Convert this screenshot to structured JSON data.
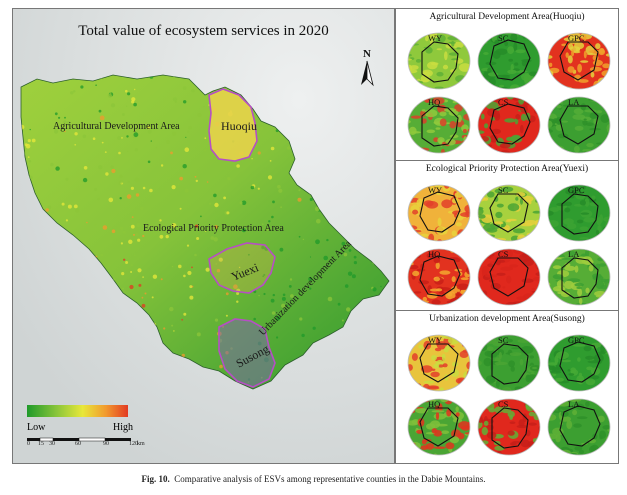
{
  "map": {
    "title": "Total value of ecosystem services in 2020",
    "north_label": "N",
    "regions": {
      "agricultural": "Agricultural Development Area",
      "ecological": "Ecological Priority Protection Area",
      "urbanization": "Urbanization development Area"
    },
    "counties": {
      "huoqiu": "Huoqiu",
      "yuexi": "Yuexi",
      "susong": "Susong"
    },
    "legend": {
      "low": "Low",
      "high": "High",
      "colors": [
        "#1f9a2a",
        "#8cc63a",
        "#e8e83a",
        "#f29a2e",
        "#e23a22"
      ]
    },
    "scale": {
      "ticks": [
        "0",
        "15",
        "30",
        "60",
        "90",
        "120"
      ],
      "unit": "km"
    }
  },
  "panels": [
    {
      "title": "Agricultural Development Area(Huoqiu)",
      "maps": [
        {
          "label": "WY",
          "colors": [
            "#8fc93c",
            "#c9dd3f",
            "#5fb036"
          ]
        },
        {
          "label": "SC",
          "colors": [
            "#2f9c2f",
            "#45aa35",
            "#268c28"
          ]
        },
        {
          "label": "GPC",
          "colors": [
            "#e2321f",
            "#f0a12c",
            "#e4d23d"
          ]
        },
        {
          "label": "HQ",
          "colors": [
            "#56ad36",
            "#8fc93c",
            "#d9402a"
          ]
        },
        {
          "label": "CS",
          "colors": [
            "#e0281d",
            "#c71f19",
            "#4aa534"
          ]
        },
        {
          "label": "LA",
          "colors": [
            "#3c9f31",
            "#54ad37",
            "#2e9129"
          ]
        }
      ]
    },
    {
      "title": "Ecological Priority Protection Area(Yuexi)",
      "maps": [
        {
          "label": "WY",
          "colors": [
            "#f0b23a",
            "#e8d23c",
            "#e3402a"
          ]
        },
        {
          "label": "SC",
          "colors": [
            "#a8d13e",
            "#4aa534",
            "#e7d03c"
          ]
        },
        {
          "label": "GPC",
          "colors": [
            "#2f9c2f",
            "#3ca332",
            "#268c28"
          ]
        },
        {
          "label": "HQ",
          "colors": [
            "#e2321f",
            "#f3a82f",
            "#c91f18"
          ]
        },
        {
          "label": "CS",
          "colors": [
            "#e0281d",
            "#d8241b",
            "#c71f19"
          ]
        },
        {
          "label": "LA",
          "colors": [
            "#56ad36",
            "#9fcd3d",
            "#3c9f31"
          ]
        }
      ]
    },
    {
      "title": "Urbanization development Area(Susong)",
      "maps": [
        {
          "label": "WY",
          "colors": [
            "#e8c43c",
            "#c9dd3f",
            "#e3402a"
          ]
        },
        {
          "label": "SC",
          "colors": [
            "#3c9f31",
            "#4aa534",
            "#2e9129"
          ]
        },
        {
          "label": "GPC",
          "colors": [
            "#2f9c2f",
            "#45aa35",
            "#268c28"
          ]
        },
        {
          "label": "HQ",
          "colors": [
            "#4aa534",
            "#e2321f",
            "#7fc03b"
          ]
        },
        {
          "label": "CS",
          "colors": [
            "#e0281d",
            "#c71f19",
            "#5fb036"
          ]
        },
        {
          "label": "LA",
          "colors": [
            "#3c9f31",
            "#5fb036",
            "#2e9129"
          ]
        }
      ]
    }
  ],
  "caption": {
    "fig": "Fig. 10.",
    "text": "Comparative analysis of ESVs among representative counties in the Dabie Mountains."
  }
}
